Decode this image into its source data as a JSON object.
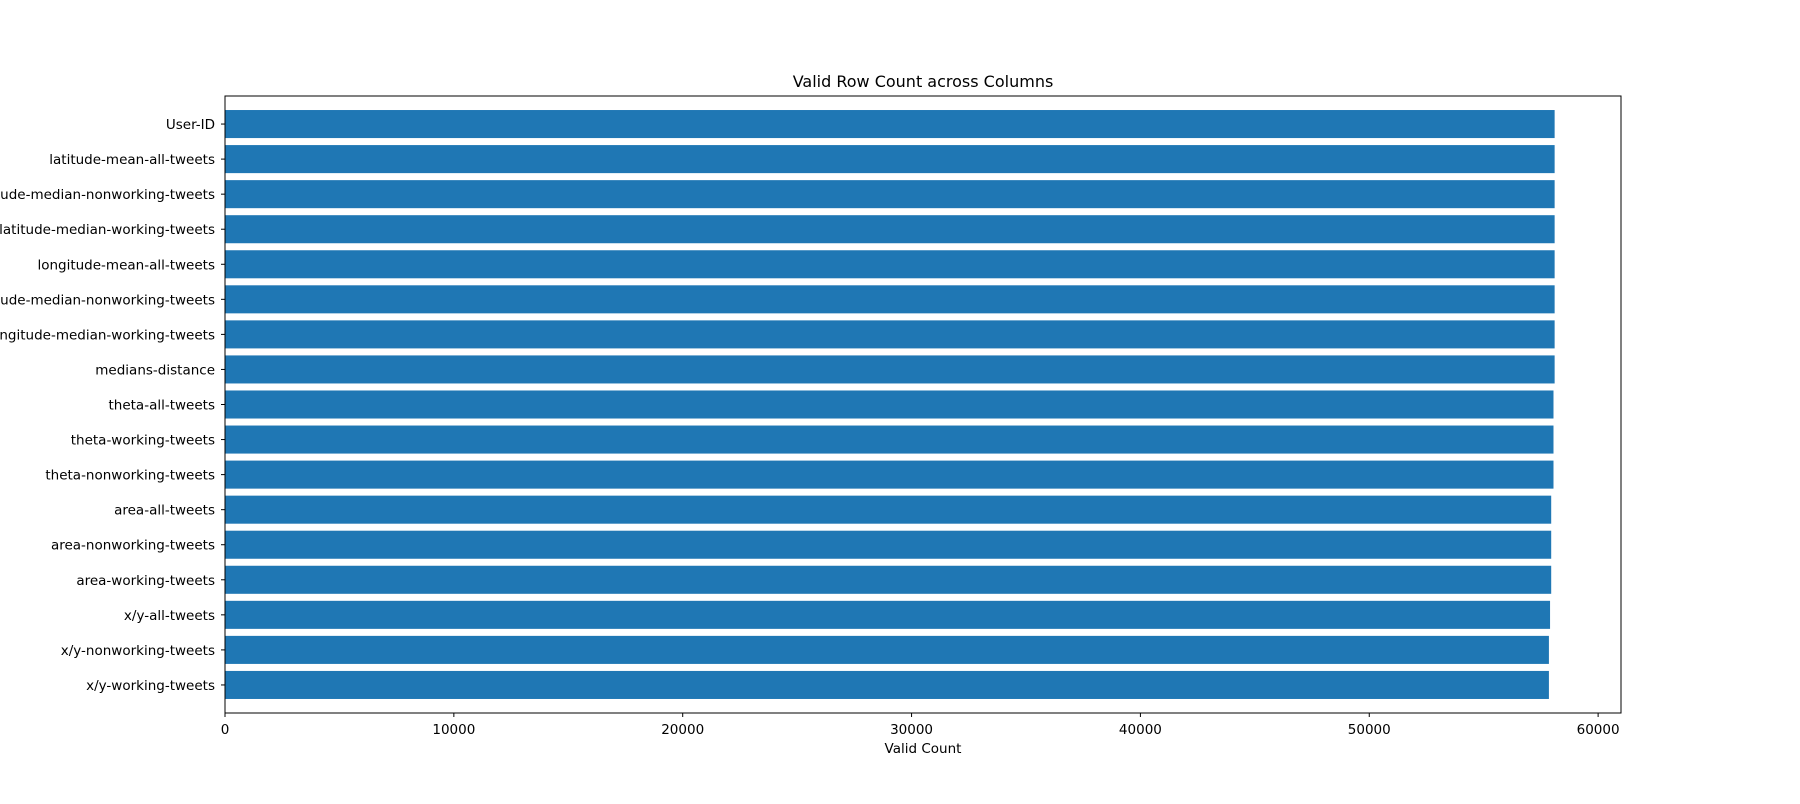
{
  "chart_data": {
    "type": "bar",
    "orientation": "horizontal",
    "title": "Valid Row Count across Columns",
    "xlabel": "Valid Count",
    "ylabel": "",
    "xlim": [
      0,
      61000
    ],
    "xticks": [
      0,
      10000,
      20000,
      30000,
      40000,
      50000,
      60000
    ],
    "grid": false,
    "bar_color": "#1f77b4",
    "categories": [
      "User-ID",
      "latitude-mean-all-tweets",
      "latitude-median-nonworking-tweets",
      "latitude-median-working-tweets",
      "longitude-mean-all-tweets",
      "longitude-median-nonworking-tweets",
      "longitude-median-working-tweets",
      "medians-distance",
      "theta-all-tweets",
      "theta-working-tweets",
      "theta-nonworking-tweets",
      "area-all-tweets",
      "area-nonworking-tweets",
      "area-working-tweets",
      "x/y-all-tweets",
      "x/y-nonworking-tweets",
      "x/y-working-tweets"
    ],
    "values": [
      58100,
      58100,
      58100,
      58100,
      58100,
      58100,
      58100,
      58100,
      58050,
      58050,
      58050,
      57950,
      57950,
      57950,
      57900,
      57850,
      57850
    ]
  }
}
